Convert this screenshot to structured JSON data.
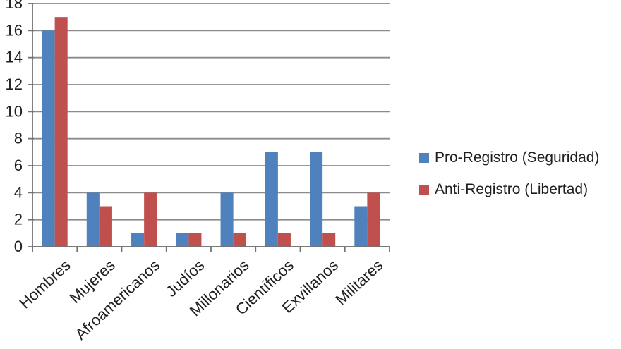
{
  "chart_data": {
    "type": "bar",
    "title": "",
    "xlabel": "",
    "ylabel": "",
    "categories": [
      "Hombres",
      "Mujeres",
      "Afroamericanos",
      "Judíos",
      "Millonarios",
      "Científicos",
      "Exvillanos",
      "Militares"
    ],
    "series": [
      {
        "name": "Pro-Registro (Seguridad)",
        "color": "#4F81BD",
        "values": [
          16,
          4,
          1,
          1,
          4,
          7,
          7,
          3
        ]
      },
      {
        "name": "Anti-Registro (Libertad)",
        "color": "#C0504D",
        "values": [
          17,
          3,
          4,
          1,
          1,
          1,
          1,
          4
        ]
      }
    ],
    "ylim": [
      0,
      18
    ],
    "ytick_step": 2,
    "grid": true,
    "legend_position": "right",
    "bar_grouping": "clustered",
    "gridline_color": "#8C8C8C",
    "axis_color": "#737373",
    "text_color": "#1F1F1F",
    "background": "#FFFFFF"
  }
}
